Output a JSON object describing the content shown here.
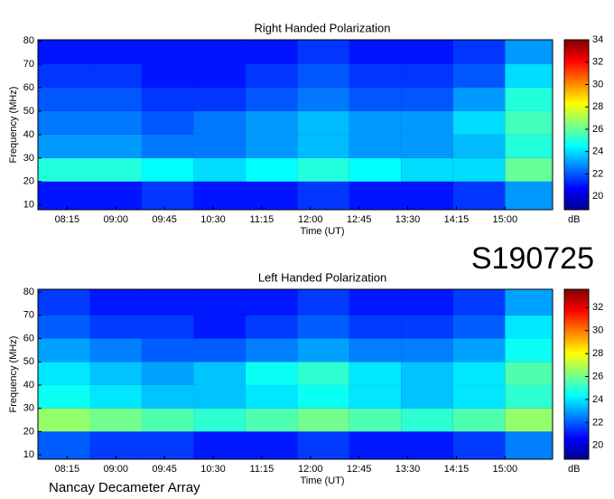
{
  "title": "S190725",
  "footer": "Nancay Decameter Array",
  "chart_data": [
    {
      "type": "heatmap",
      "title": "Right Handed Polarization",
      "xlabel": "Time (UT)",
      "ylabel": "Frequency (MHz)",
      "colorbar_label": "dB",
      "colormap": "jet",
      "x": [
        468,
        516,
        564,
        612,
        660,
        708,
        756,
        804,
        852,
        900,
        944
      ],
      "y": [
        10,
        20,
        30,
        40,
        50,
        60,
        70,
        80
      ],
      "z": [
        [
          21,
          21,
          21.5,
          21,
          21,
          21.5,
          21,
          21,
          21.5,
          23
        ],
        [
          25,
          25,
          24.5,
          24,
          24.5,
          25,
          24.5,
          24,
          24,
          26
        ],
        [
          23,
          23,
          22.5,
          22.5,
          23,
          23.5,
          23,
          23,
          23.5,
          25
        ],
        [
          22.5,
          22.5,
          22,
          22.5,
          23,
          23.5,
          23,
          23,
          24,
          25.5
        ],
        [
          22,
          22,
          21.5,
          21.5,
          22,
          22.5,
          22,
          22,
          23,
          25
        ],
        [
          21.5,
          21.5,
          21,
          21,
          21.5,
          22,
          21.5,
          21.5,
          22,
          24
        ],
        [
          21,
          21,
          21,
          21,
          21,
          21.5,
          21,
          21,
          21.5,
          23
        ]
      ],
      "xlim": [
        468,
        944
      ],
      "ylim": [
        8,
        80.4
      ],
      "xticks": [
        {
          "value": 495,
          "label": "08:15"
        },
        {
          "value": 540,
          "label": "09:00"
        },
        {
          "value": 585,
          "label": "09:45"
        },
        {
          "value": 630,
          "label": "10:30"
        },
        {
          "value": 675,
          "label": "11:15"
        },
        {
          "value": 720,
          "label": "12:00"
        },
        {
          "value": 765,
          "label": "12:45"
        },
        {
          "value": 810,
          "label": "13:30"
        },
        {
          "value": 855,
          "label": "14:15"
        },
        {
          "value": 900,
          "label": "15:00"
        }
      ],
      "yticks": [
        10,
        20,
        30,
        40,
        50,
        60,
        70,
        80
      ],
      "clim": [
        18.8,
        34
      ],
      "cticks": [
        20,
        22,
        24,
        26,
        28,
        30,
        32,
        34
      ]
    },
    {
      "type": "heatmap",
      "title": "Left Handed Polarization",
      "xlabel": "Time (UT)",
      "ylabel": "Frequency (MHz)",
      "colorbar_label": "dB",
      "colormap": "jet",
      "x": [
        468,
        516,
        564,
        612,
        660,
        708,
        756,
        804,
        852,
        900,
        944
      ],
      "y": [
        10,
        20,
        30,
        40,
        50,
        60,
        70,
        80
      ],
      "z": [
        [
          22,
          21.5,
          21.5,
          21,
          21,
          21.5,
          21,
          21,
          21.5,
          22.5
        ],
        [
          26.5,
          26,
          25.5,
          25,
          25.5,
          26,
          25.5,
          25,
          25.5,
          26.5
        ],
        [
          24.5,
          24,
          23.5,
          23.5,
          24,
          24.5,
          24,
          23.5,
          24,
          25
        ],
        [
          24,
          23.5,
          23,
          23.5,
          24.5,
          25,
          24,
          23.5,
          24,
          25.5
        ],
        [
          23,
          22.5,
          22,
          22,
          22.5,
          23,
          22.5,
          22.5,
          23,
          24.5
        ],
        [
          22,
          21.5,
          21.5,
          21,
          21.5,
          22,
          21.5,
          21.5,
          22,
          24
        ],
        [
          21.5,
          21,
          21,
          21,
          21,
          21.5,
          21,
          21,
          21.5,
          23
        ]
      ],
      "xlim": [
        468,
        944
      ],
      "ylim": [
        8.1,
        81.2
      ],
      "xticks": [
        {
          "value": 495,
          "label": "08:15"
        },
        {
          "value": 540,
          "label": "09:00"
        },
        {
          "value": 585,
          "label": "09:45"
        },
        {
          "value": 630,
          "label": "10:30"
        },
        {
          "value": 675,
          "label": "11:15"
        },
        {
          "value": 720,
          "label": "12:00"
        },
        {
          "value": 765,
          "label": "12:45"
        },
        {
          "value": 810,
          "label": "13:30"
        },
        {
          "value": 855,
          "label": "14:15"
        },
        {
          "value": 900,
          "label": "15:00"
        }
      ],
      "yticks": [
        10,
        20,
        30,
        40,
        50,
        60,
        70,
        80
      ],
      "clim": [
        18.8,
        33.6
      ],
      "cticks": [
        20,
        22,
        24,
        26,
        28,
        30,
        32
      ]
    }
  ]
}
